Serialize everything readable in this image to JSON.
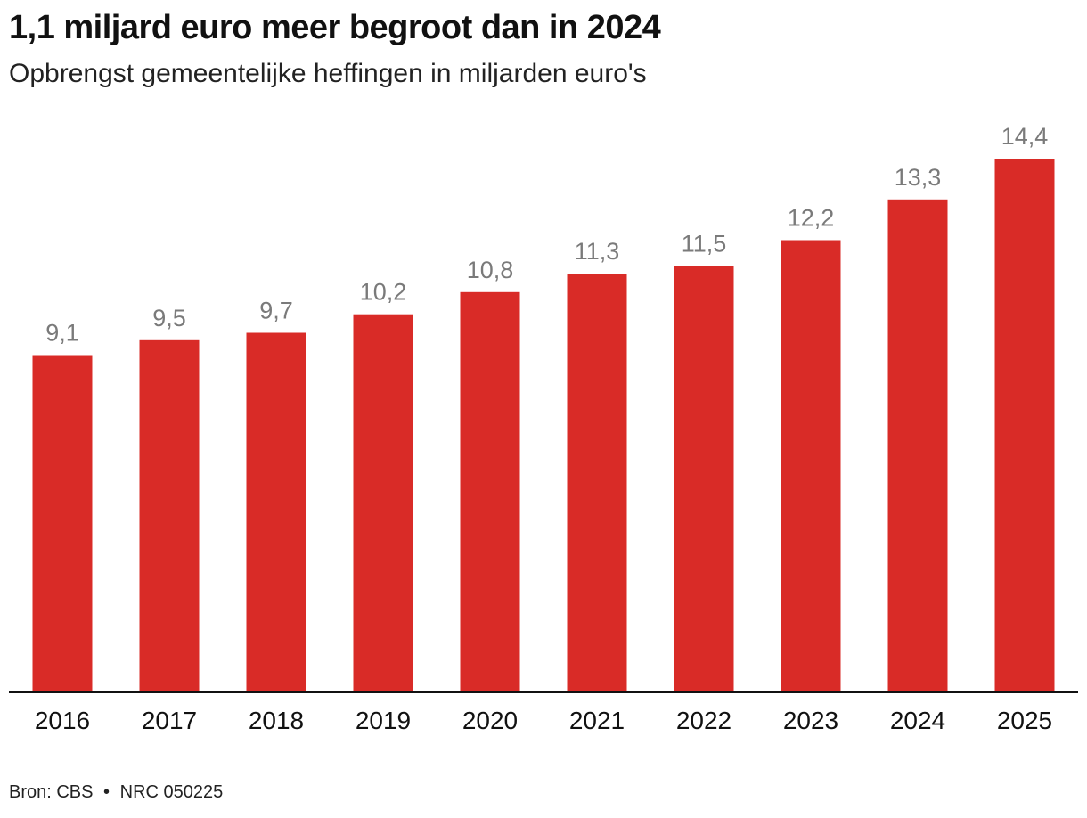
{
  "chart_data": {
    "type": "bar",
    "title": "1,1 miljard euro meer begroot dan in 2024",
    "subtitle": "Opbrengst gemeentelijke heffingen in miljarden euro's",
    "categories": [
      "2016",
      "2017",
      "2018",
      "2019",
      "2020",
      "2021",
      "2022",
      "2023",
      "2024",
      "2025"
    ],
    "values": [
      9.1,
      9.5,
      9.7,
      10.2,
      10.8,
      11.3,
      11.5,
      12.2,
      13.3,
      14.4
    ],
    "value_labels": [
      "9,1",
      "9,5",
      "9,7",
      "10,2",
      "10,8",
      "11,3",
      "11,5",
      "12,2",
      "13,3",
      "14,4"
    ],
    "ylim": [
      0,
      14.4
    ],
    "grid": false,
    "bar_color": "#d92b27",
    "label_color": "#7a7a7a",
    "axis_color": "#111111"
  },
  "footer": {
    "source": "Bron: CBS",
    "separator": "•",
    "credit": "NRC 050225"
  }
}
